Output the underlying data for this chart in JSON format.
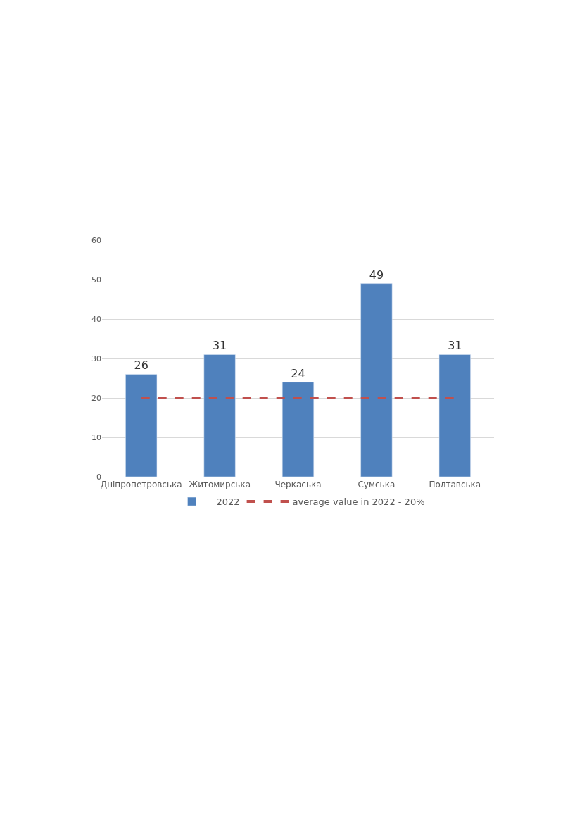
{
  "chart_data": {
    "type": "bar",
    "categories": [
      "Дніпропетровська",
      "Житомирська",
      "Черкаська",
      "Сумська",
      "Полтавська"
    ],
    "series": [
      {
        "name": "2022",
        "color": "#4f81bd",
        "values": [
          26,
          31,
          24,
          49,
          31
        ],
        "value_labels": [
          "26",
          "31",
          "24",
          "49",
          "31"
        ]
      },
      {
        "name": "average value in 2022 - 20%",
        "type": "line",
        "color": "#c0504d",
        "line_style": "dashed",
        "values": [
          20,
          20,
          20,
          20,
          20
        ]
      }
    ],
    "ylim": [
      0,
      60
    ],
    "yticks": [
      0,
      10,
      20,
      30,
      40,
      50,
      60
    ],
    "grid": "y",
    "legend": "bottom",
    "marker": "none"
  }
}
